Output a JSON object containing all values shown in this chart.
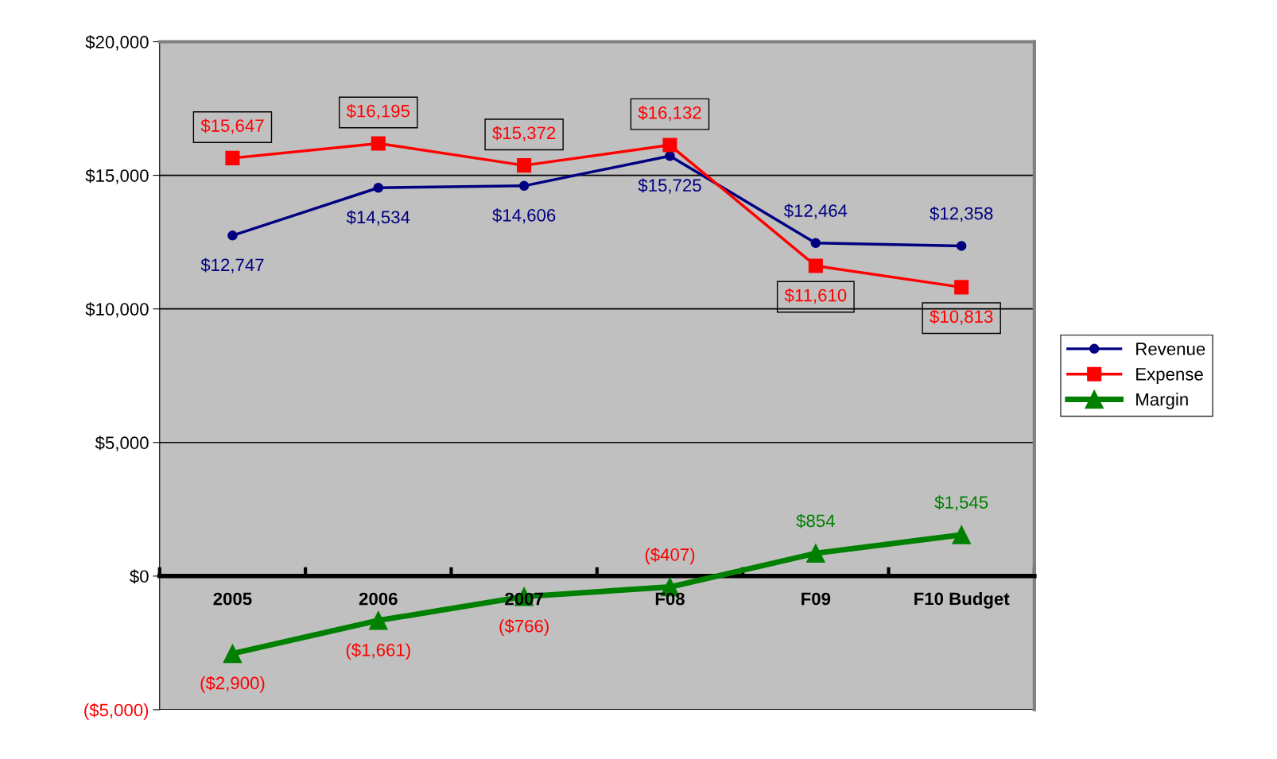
{
  "chart_data": {
    "type": "line",
    "categories": [
      "2005",
      "2006",
      "2007",
      "F08",
      "F09",
      "F10 Budget"
    ],
    "series": [
      {
        "name": "Revenue",
        "color": "#000080",
        "marker": "circle",
        "values": [
          12747,
          14534,
          14606,
          15725,
          12464,
          12358
        ],
        "value_labels": [
          "$12,747",
          "$14,534",
          "$14,606",
          "$15,725",
          "$12,464",
          "$12,358"
        ]
      },
      {
        "name": "Expense",
        "color": "#ff0000",
        "marker": "square",
        "values": [
          15647,
          16195,
          15372,
          16132,
          11610,
          10813
        ],
        "value_labels": [
          "$15,647",
          "$16,195",
          "$15,372",
          "$16,132",
          "$11,610",
          "$10,813"
        ]
      },
      {
        "name": "Margin",
        "color": "#008000",
        "marker": "triangle",
        "values": [
          -2900,
          -1661,
          -766,
          -407,
          854,
          1545
        ],
        "value_labels": [
          "($2,900)",
          "($1,661)",
          "($766)",
          "($407)",
          "$854",
          "$1,545"
        ]
      }
    ],
    "ylim": [
      -5000,
      20000
    ],
    "yticks": [
      {
        "value": -5000,
        "label": "($5,000)"
      },
      {
        "value": 0,
        "label": "$0"
      },
      {
        "value": 5000,
        "label": "$5,000"
      },
      {
        "value": 10000,
        "label": "$10,000"
      },
      {
        "value": 15000,
        "label": "$15,000"
      },
      {
        "value": 20000,
        "label": "$20,000"
      }
    ],
    "grid": "y",
    "legend": "right"
  }
}
